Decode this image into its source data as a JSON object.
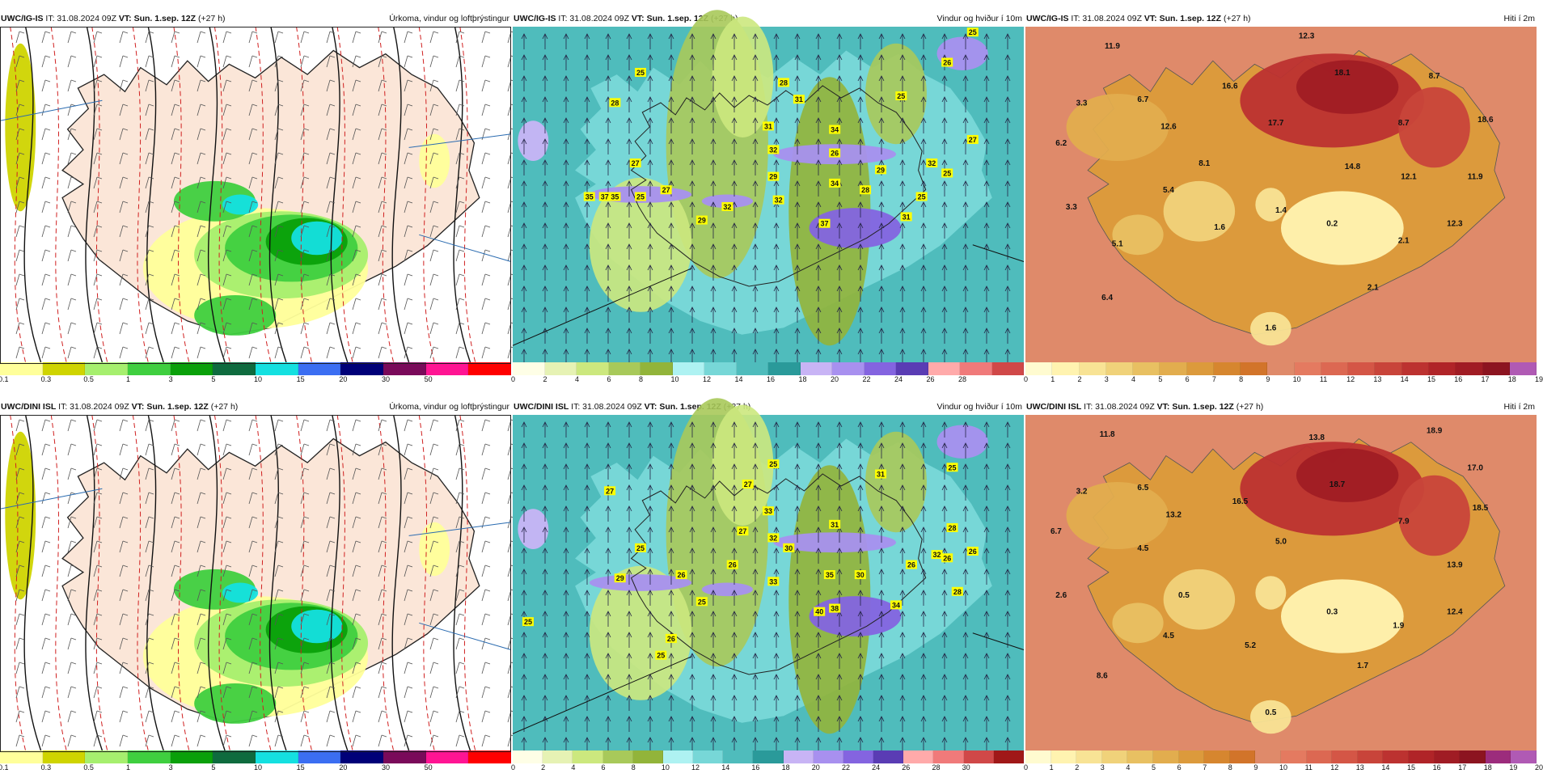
{
  "panels": [
    {
      "id": "p1",
      "row": 0,
      "col": 0,
      "type": "precip",
      "model": "UWC/IG-IS",
      "it": "IT: 31.08.2024 09Z",
      "vt_label": "VT:",
      "vt": "Sun. 1.sep. 12Z",
      "lead": "(+27 h)",
      "title": "Úrkoma, vindur og loftþrýstingur",
      "scale_colors": [
        "#ffff9a",
        "#cfd400",
        "#a6ef6e",
        "#3fcf3f",
        "#0aa00a",
        "#0e6b3e",
        "#14e0e0",
        "#3b6ef2",
        "#000078",
        "#7a0a5a",
        "#ff1493",
        "#ff0000"
      ],
      "scale_ticks": [
        "0.1",
        "0.3",
        "0.5",
        "1",
        "3",
        "5",
        "10",
        "15",
        "20",
        "30",
        "50"
      ],
      "labels": []
    },
    {
      "id": "p2",
      "row": 0,
      "col": 1,
      "type": "wind",
      "model": "UWC/IG-IS",
      "it": "IT: 31.08.2024 09Z",
      "vt_label": "VT:",
      "vt": "Sun. 1.sep. 12Z",
      "lead": "(+27 h)",
      "title": "Vindur og hviður í 10m",
      "scale_colors": [
        "#fefee6",
        "#e6f2b4",
        "#cce87e",
        "#a8c95a",
        "#92b43a",
        "#aef2f2",
        "#77d7d7",
        "#4fbcbc",
        "#2a9a9a",
        "#c8b4f5",
        "#a890ef",
        "#8464e0",
        "#5a3cb4",
        "#ffaaaa",
        "#f07a7a",
        "#d04848"
      ],
      "scale_ticks": [
        "0",
        "2",
        "4",
        "6",
        "8",
        "10",
        "12",
        "14",
        "16",
        "18",
        "20",
        "22",
        "24",
        "26",
        "28"
      ],
      "labels": [
        "25",
        "28",
        "31",
        "32",
        "27",
        "35",
        "37",
        "35",
        "25",
        "27",
        "29",
        "32",
        "32",
        "31",
        "34",
        "26",
        "29",
        "34",
        "28",
        "29",
        "37",
        "31",
        "25",
        "32",
        "25",
        "27",
        "28",
        "25",
        "26",
        "25"
      ]
    },
    {
      "id": "p3",
      "row": 0,
      "col": 2,
      "type": "temp",
      "model": "UWC/IG-IS",
      "it": "IT: 31.08.2024 09Z",
      "vt_label": "VT:",
      "vt": "Sun. 1.sep. 12Z",
      "lead": "(+27 h)",
      "title": "Hiti í 2m",
      "scale_colors": [
        "#fffbd0",
        "#fff3b0",
        "#f8e395",
        "#f0d27a",
        "#e8c062",
        "#e2ad4e",
        "#dc9a3c",
        "#d6862f",
        "#d2742a",
        "#df8a6a",
        "#e47a60",
        "#dc6852",
        "#d45646",
        "#c8443a",
        "#bc3230",
        "#b02428",
        "#a01c24",
        "#8c1420",
        "#b05ab4"
      ],
      "scale_ticks": [
        "0",
        "1",
        "2",
        "3",
        "4",
        "5",
        "6",
        "7",
        "8",
        "9",
        "10",
        "11",
        "12",
        "13",
        "14",
        "15",
        "16",
        "17",
        "18",
        "19"
      ],
      "labels": [
        "11.9",
        "12.3",
        "18.1",
        "8.7",
        "3.3",
        "6.7",
        "16.6",
        "6.2",
        "12.6",
        "17.7",
        "8.7",
        "18.6",
        "8.1",
        "14.8",
        "12.1",
        "11.9",
        "5.4",
        "3.3",
        "1.6",
        "1.4",
        "0.2",
        "12.3",
        "5.1",
        "2.1",
        "6.4",
        "2.1",
        "1.6"
      ]
    },
    {
      "id": "p4",
      "row": 1,
      "col": 0,
      "type": "precip",
      "model": "UWC/DINI ISL",
      "it": "IT: 31.08.2024 09Z",
      "vt_label": "VT:",
      "vt": "Sun. 1.sep. 12Z",
      "lead": "(+27 h)",
      "title": "Úrkoma, vindur og loftþrýstingur",
      "scale_colors": [
        "#ffff9a",
        "#cfd400",
        "#a6ef6e",
        "#3fcf3f",
        "#0aa00a",
        "#0e6b3e",
        "#14e0e0",
        "#3b6ef2",
        "#000078",
        "#7a0a5a",
        "#ff1493",
        "#ff0000"
      ],
      "scale_ticks": [
        "0.1",
        "0.3",
        "0.5",
        "1",
        "3",
        "5",
        "10",
        "15",
        "20",
        "30",
        "50"
      ],
      "labels": []
    },
    {
      "id": "p5",
      "row": 1,
      "col": 1,
      "type": "wind",
      "model": "UWC/DINI ISL",
      "it": "IT: 31.08.2024 09Z",
      "vt_label": "VT:",
      "vt": "Sun. 1.sep. 12Z",
      "lead": "(+27 h)",
      "title": "Vindur og hviður í 10m",
      "scale_colors": [
        "#fefee6",
        "#e6f2b4",
        "#cce87e",
        "#a8c95a",
        "#92b43a",
        "#aef2f2",
        "#77d7d7",
        "#4fbcbc",
        "#2a9a9a",
        "#c8b4f5",
        "#a890ef",
        "#8464e0",
        "#5a3cb4",
        "#ffaaaa",
        "#f07a7a",
        "#d04848",
        "#a01818"
      ],
      "scale_ticks": [
        "0",
        "2",
        "4",
        "6",
        "8",
        "10",
        "12",
        "14",
        "16",
        "18",
        "20",
        "22",
        "24",
        "26",
        "28",
        "30"
      ],
      "labels": [
        "27",
        "25",
        "27",
        "25",
        "29",
        "33",
        "27",
        "32",
        "30",
        "31",
        "26",
        "31",
        "26",
        "33",
        "25",
        "35",
        "30",
        "26",
        "26",
        "40",
        "38",
        "34",
        "25",
        "26",
        "28",
        "25",
        "32",
        "26",
        "25",
        "28"
      ]
    },
    {
      "id": "p6",
      "row": 1,
      "col": 2,
      "type": "temp",
      "model": "UWC/DINI ISL",
      "it": "IT: 31.08.2024 09Z",
      "vt_label": "VT:",
      "vt": "Sun. 1.sep. 12Z",
      "lead": "(+27 h)",
      "title": "Hiti í 2m",
      "scale_colors": [
        "#fffbd0",
        "#fff3b0",
        "#f8e395",
        "#f0d27a",
        "#e8c062",
        "#e2ad4e",
        "#dc9a3c",
        "#d6862f",
        "#d2742a",
        "#df8a6a",
        "#e47a60",
        "#dc6852",
        "#d45646",
        "#c8443a",
        "#bc3230",
        "#b02428",
        "#a01c24",
        "#8c1420",
        "#9c2c7c",
        "#b05ab4"
      ],
      "scale_ticks": [
        "0",
        "1",
        "2",
        "3",
        "4",
        "5",
        "6",
        "7",
        "8",
        "9",
        "10",
        "11",
        "12",
        "13",
        "14",
        "15",
        "16",
        "17",
        "18",
        "19",
        "20"
      ],
      "labels": [
        "11.8",
        "13.8",
        "18.9",
        "17.0",
        "3.2",
        "6.5",
        "16.5",
        "18.7",
        "6.7",
        "13.2",
        "18.5",
        "4.5",
        "5.0",
        "7.9",
        "13.9",
        "2.6",
        "0.5",
        "0.3",
        "1.9",
        "12.4",
        "4.5",
        "5.2",
        "8.6",
        "1.7",
        "0.5"
      ]
    }
  ]
}
